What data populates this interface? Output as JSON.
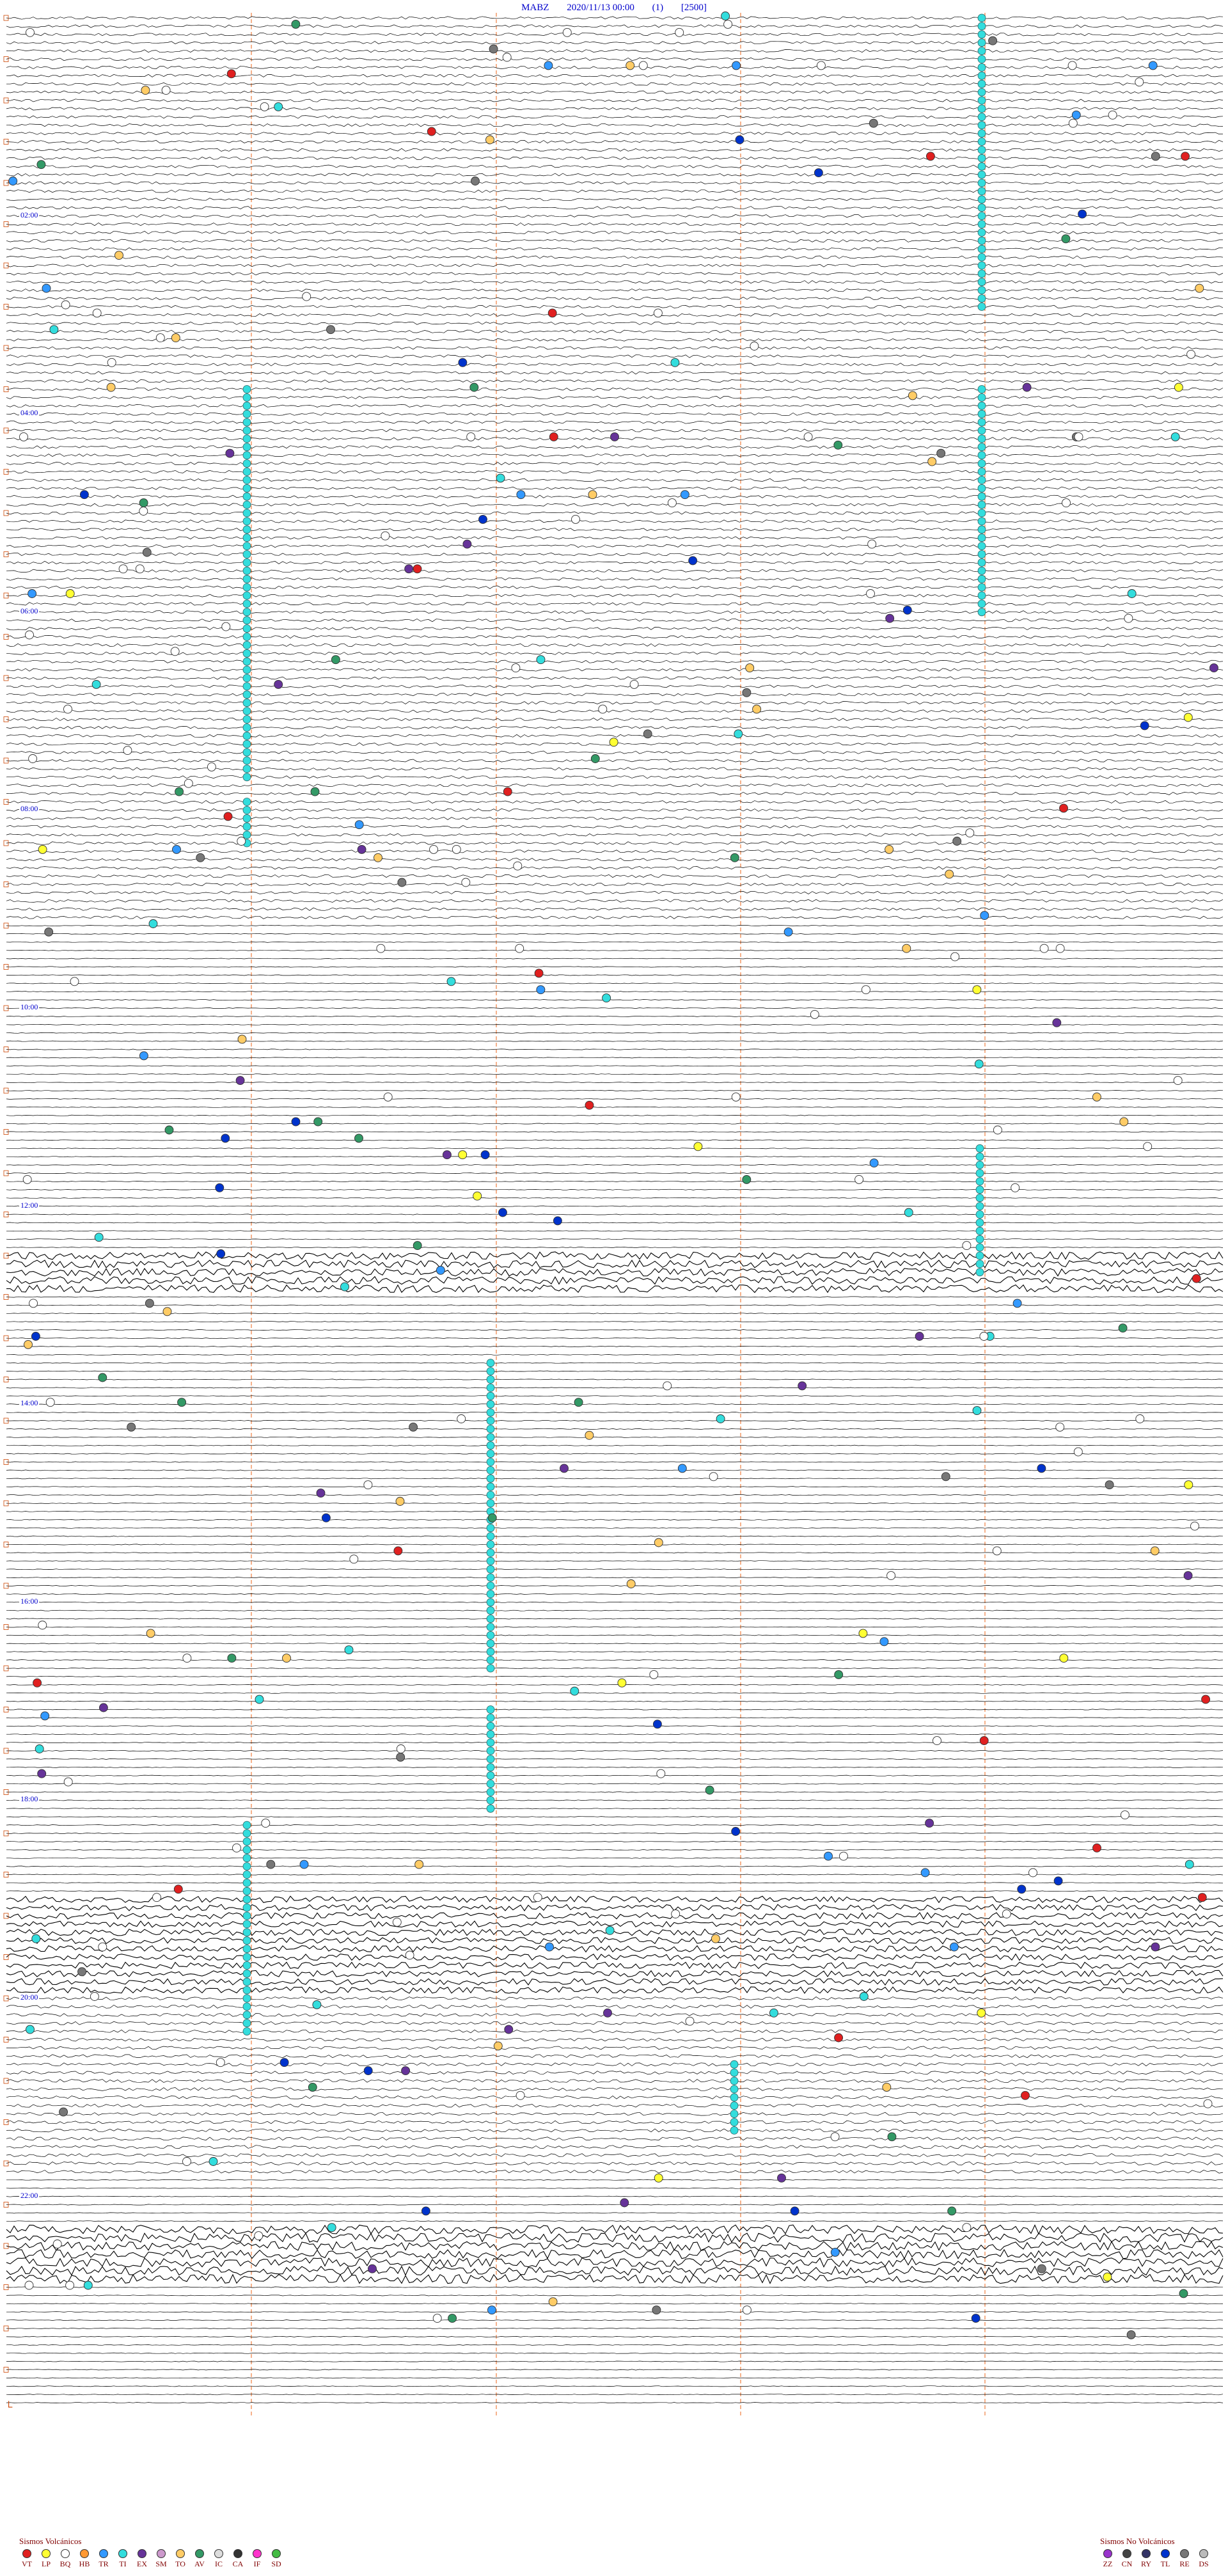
{
  "header": {
    "station": "MABZ",
    "datetime": "2020/11/13 00:00",
    "channel": "(1)",
    "scale": "[2500]"
  },
  "hour_labels": [
    "02:00",
    "04:00",
    "06:00",
    "08:00",
    "10:00",
    "12:00",
    "14:00",
    "16:00",
    "18:00",
    "20:00",
    "22:00"
  ],
  "legend_volcanic": {
    "title": "Sismos Volcánicos",
    "items": [
      {
        "code": "VT",
        "color": "#e02020"
      },
      {
        "code": "LP",
        "color": "#ffff33"
      },
      {
        "code": "BQ",
        "color": "#ffffff"
      },
      {
        "code": "HB",
        "color": "#ff9933"
      },
      {
        "code": "TR",
        "color": "#3399ff"
      },
      {
        "code": "TI",
        "color": "#33dddd"
      },
      {
        "code": "EX",
        "color": "#663399"
      },
      {
        "code": "SM",
        "color": "#cc99cc"
      },
      {
        "code": "TO",
        "color": "#ffcc66"
      },
      {
        "code": "AV",
        "color": "#339966"
      },
      {
        "code": "IC",
        "color": "#dddddd"
      },
      {
        "code": "CA",
        "color": "#333333"
      },
      {
        "code": "IF",
        "color": "#ff33cc"
      },
      {
        "code": "SD",
        "color": "#44bb44"
      }
    ]
  },
  "legend_non_volcanic": {
    "title": "Sismos No Volcánicos",
    "items": [
      {
        "code": "ZZ",
        "color": "#9933cc"
      },
      {
        "code": "CN",
        "color": "#444444"
      },
      {
        "code": "RY",
        "color": "#333366"
      },
      {
        "code": "TL",
        "color": "#0033cc"
      },
      {
        "code": "RE",
        "color": "#777777"
      },
      {
        "code": "DS",
        "color": "#bbbbbb"
      }
    ]
  },
  "corner_mark": "└"
}
